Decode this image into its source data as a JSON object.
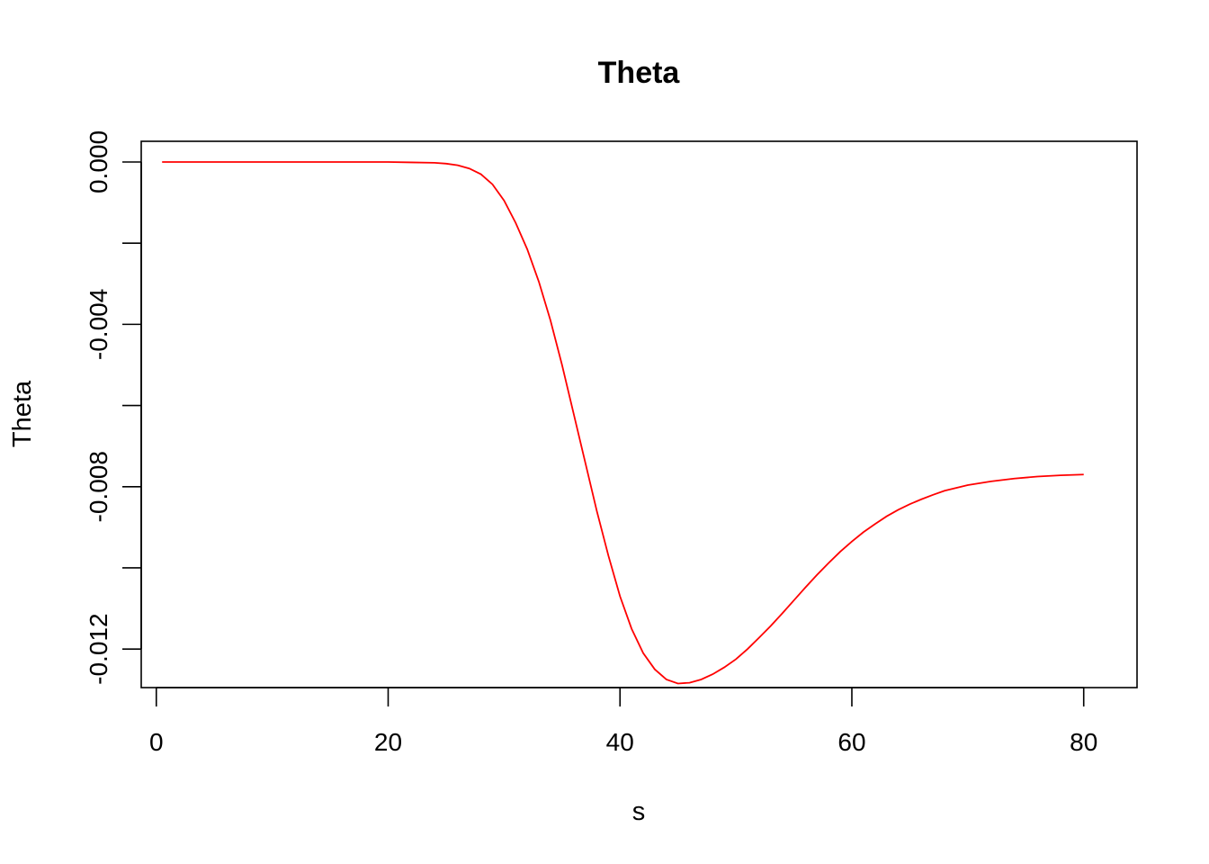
{
  "chart_data": {
    "type": "line",
    "title": "Theta",
    "xlabel": "s",
    "ylabel": "Theta",
    "xlim": [
      -1.3,
      84.6
    ],
    "ylim": [
      -0.01295,
      0.00051
    ],
    "x_ticks": [
      0,
      20,
      40,
      60,
      80
    ],
    "x_tick_labels": [
      "0",
      "20",
      "40",
      "60",
      "80"
    ],
    "y_ticks": [
      0,
      -0.002,
      -0.004,
      -0.006,
      -0.008,
      -0.01,
      -0.012
    ],
    "y_tick_labels": [
      "0.000",
      "",
      "-0.004",
      "",
      "-0.008",
      "",
      "-0.012"
    ],
    "grid": false,
    "legend": "none",
    "series": [
      {
        "color": "#ff0000",
        "x": [
          0.5,
          5,
          10,
          15,
          20,
          22,
          24,
          25,
          26,
          27,
          28,
          29,
          30,
          31,
          32,
          33,
          34,
          35,
          36,
          37,
          38,
          39,
          40,
          41,
          42,
          43,
          44,
          45,
          46,
          47,
          48,
          49,
          50,
          51,
          52,
          53,
          54,
          55,
          56,
          57,
          58,
          59,
          60,
          61,
          62,
          63,
          64,
          65,
          66,
          67,
          68,
          70,
          72,
          74,
          76,
          78,
          80
        ],
        "y": [
          0,
          0,
          0,
          0,
          0,
          -1e-05,
          -2e-05,
          -4e-05,
          -8e-05,
          -0.00016,
          -0.0003,
          -0.00055,
          -0.00095,
          -0.0015,
          -0.00215,
          -0.00295,
          -0.0039,
          -0.005,
          -0.0062,
          -0.0074,
          -0.0086,
          -0.0097,
          -0.0107,
          -0.0115,
          -0.0121,
          -0.0125,
          -0.01275,
          -0.01285,
          -0.01283,
          -0.01275,
          -0.01262,
          -0.01245,
          -0.01225,
          -0.012,
          -0.01172,
          -0.01143,
          -0.01112,
          -0.0108,
          -0.01048,
          -0.01017,
          -0.00988,
          -0.0096,
          -0.00935,
          -0.00912,
          -0.00892,
          -0.00873,
          -0.00857,
          -0.00843,
          -0.00831,
          -0.0082,
          -0.0081,
          -0.00796,
          -0.00787,
          -0.0078,
          -0.00775,
          -0.00772,
          -0.0077
        ]
      }
    ]
  }
}
